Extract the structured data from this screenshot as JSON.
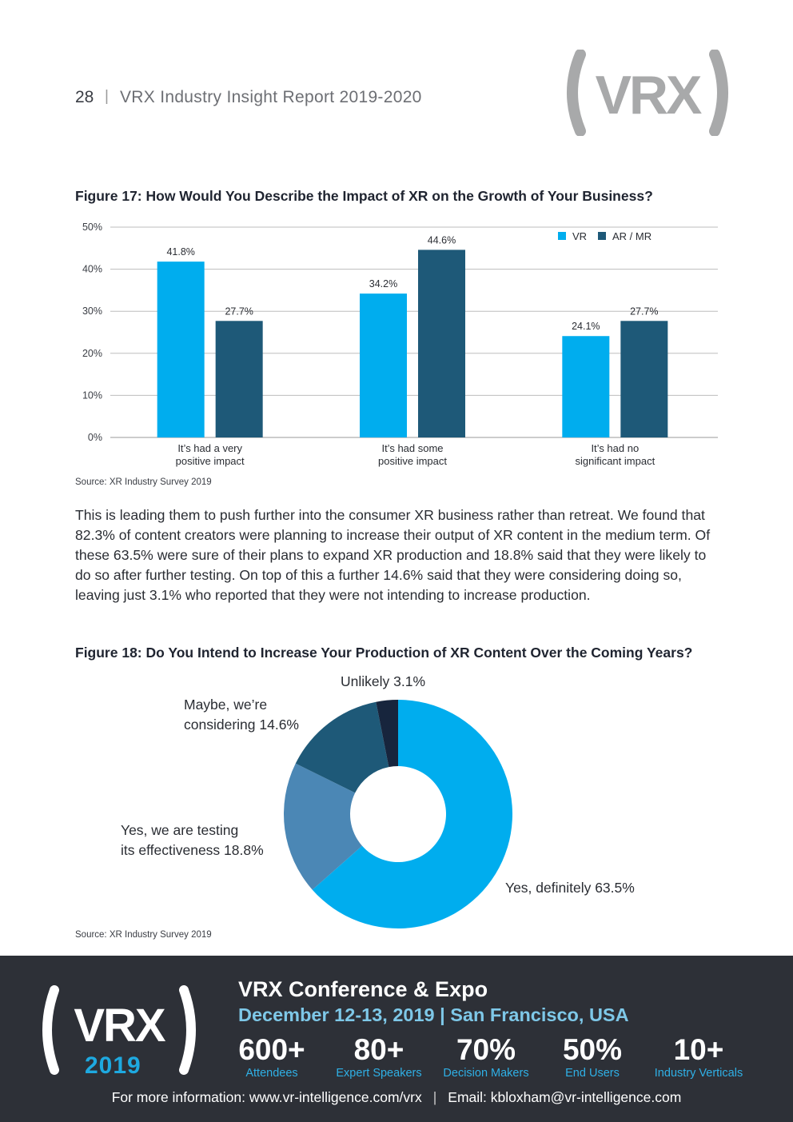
{
  "header": {
    "page_number": "28",
    "separator": "|",
    "report_title": "VRX Industry Insight Report 2019-2020",
    "logo_text": "VRX"
  },
  "figure17": {
    "title": "Figure 17: How Would You Describe the Impact of XR on the Growth of Your Business?",
    "source": "Source: XR Industry Survey 2019"
  },
  "figure18": {
    "title": "Figure 18: Do You Intend to Increase Your Production of XR Content Over the Coming Years?",
    "source": "Source: XR Industry Survey 2019"
  },
  "body_text": "This is leading them to push further into the consumer XR business rather than retreat. We found that 82.3% of content creators were planning to increase their output of XR content in the medium term. Of these 63.5% were sure of their plans to expand XR production and 18.8% said that they were likely to do so after further testing. On top of this a further 14.6% said that they were considering doing so, leaving just 3.1% who reported that they were not intending to increase production.",
  "colors": {
    "vr": "#00adee",
    "ar_mr": "#1e5978",
    "yes_definitely": "#00adee",
    "yes_testing": "#4b87b5",
    "maybe": "#1e5978",
    "unlikely": "#17253d",
    "footer_bg": "#2d3037",
    "accent": "#1ea9e0"
  },
  "chart_data": [
    {
      "type": "bar",
      "title": "Figure 17: How Would You Describe the Impact of XR on the Growth of Your Business?",
      "categories": [
        [
          "It’s had a very",
          "positive impact"
        ],
        [
          "It’s had some",
          "positive impact"
        ],
        [
          "It’s had no",
          "significant impact"
        ]
      ],
      "series": [
        {
          "name": "VR",
          "values": [
            41.8,
            34.2,
            24.1
          ],
          "labels": [
            "41.8%",
            "34.2%",
            "24.1%"
          ]
        },
        {
          "name": "AR / MR",
          "values": [
            27.7,
            44.6,
            27.7
          ],
          "labels": [
            "27.7%",
            "44.6%",
            "27.7%"
          ]
        }
      ],
      "yticks": [
        "0%",
        "10%",
        "20%",
        "30%",
        "40%",
        "50%"
      ],
      "ylim": [
        0,
        50
      ],
      "grid": true,
      "legend": "top-right"
    },
    {
      "type": "pie",
      "style": "donut",
      "title": "Figure 18: Do You Intend to Increase Your Production of XR Content Over the Coming Years?",
      "slices": [
        {
          "name": "Yes, definitely",
          "value": 63.5,
          "label": [
            "Yes, definitely 63.5%"
          ]
        },
        {
          "name": "Yes, we are testing its effectiveness",
          "value": 18.8,
          "label": [
            "Yes, we are testing",
            "its effectiveness 18.8%"
          ]
        },
        {
          "name": "Maybe, we’re considering",
          "value": 14.6,
          "label": [
            "Maybe, we’re",
            "considering 14.6%"
          ]
        },
        {
          "name": "Unlikely",
          "value": 3.1,
          "label": [
            "Unlikely 3.1%"
          ]
        }
      ]
    }
  ],
  "footer": {
    "logo_text": "VRX",
    "year": "2019",
    "title": "VRX Conference & Expo",
    "date_location": "December 12-13, 2019  |  San Francisco, USA",
    "stats": [
      {
        "value": "600+",
        "label": "Attendees"
      },
      {
        "value": "80+",
        "label": "Expert Speakers"
      },
      {
        "value": "70%",
        "label": "Decision Makers"
      },
      {
        "value": "50%",
        "label": "End Users"
      },
      {
        "value": "10+",
        "label": "Industry Verticals"
      }
    ],
    "info_left": "For more information: www.vr-intelligence.com/vrx",
    "info_sep": "|",
    "info_right": "Email: kbloxham@vr-intelligence.com"
  }
}
